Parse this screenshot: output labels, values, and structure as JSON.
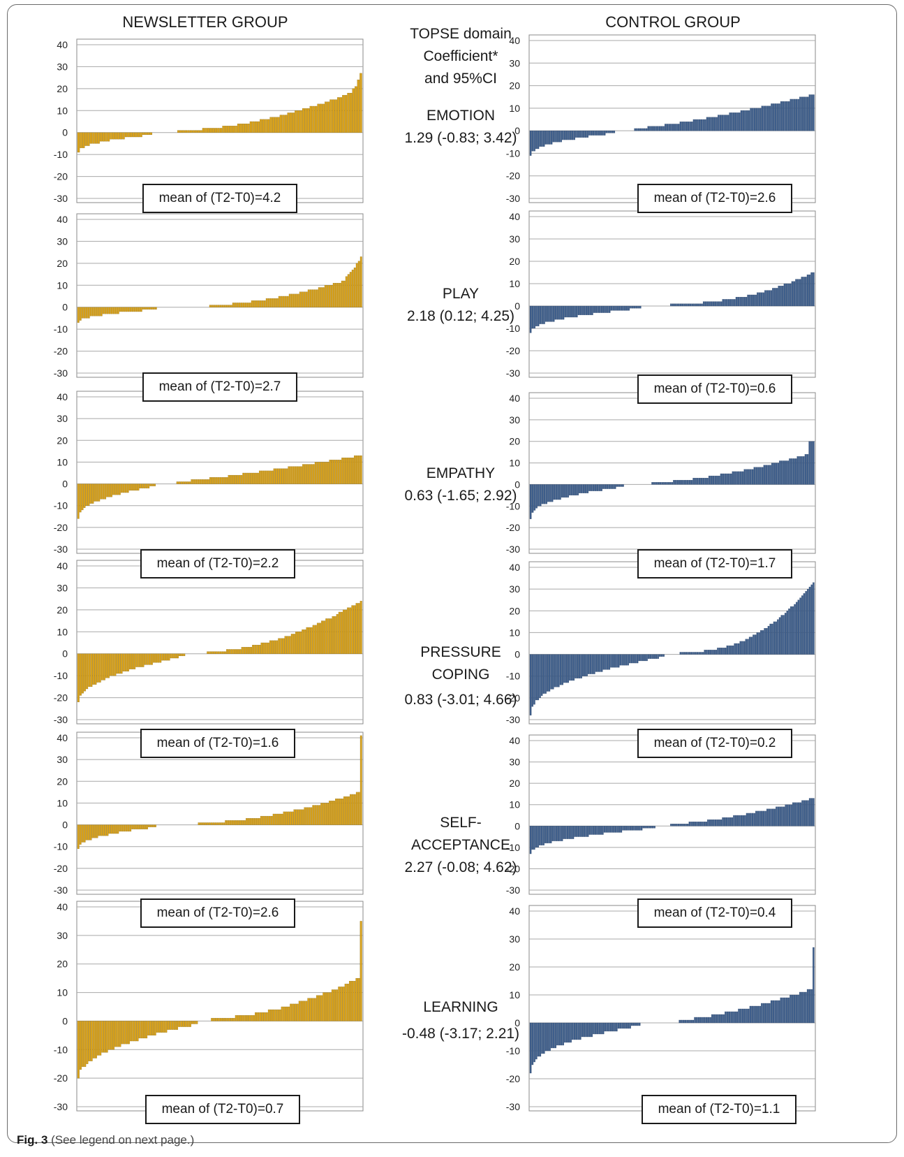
{
  "header": {
    "left": "NEWSLETTER GROUP",
    "right": "CONTROL GROUP",
    "middle": [
      "TOPSE domain",
      "Coefficient*",
      "and 95%CI"
    ]
  },
  "colors": {
    "newsletter": "#d9a21b",
    "control": "#3f5f8c"
  },
  "caption": {
    "label": "Fig. 3",
    "text": "(See legend on next page.)"
  },
  "rows": [
    {
      "domain_lines": [
        "EMOTION"
      ],
      "coef": "1.29 (-0.83; 3.42)",
      "newsletter_mean": "mean of (T2-T0)=4.2",
      "control_mean": "mean of (T2-T0)=2.6"
    },
    {
      "domain_lines": [
        "PLAY"
      ],
      "coef": "2.18 (0.12; 4.25)",
      "newsletter_mean": "mean of (T2-T0)=2.7",
      "control_mean": "mean of (T2-T0)=0.6"
    },
    {
      "domain_lines": [
        "EMPATHY"
      ],
      "coef": "0.63 (-1.65; 2.92)",
      "newsletter_mean": "mean of (T2-T0)=2.2",
      "control_mean": "mean of (T2-T0)=1.7"
    },
    {
      "domain_lines": [
        "PRESSURE",
        "COPING"
      ],
      "coef": "0.83 (-3.01; 4.66)",
      "newsletter_mean": "mean of (T2-T0)=1.6",
      "control_mean": "mean of (T2-T0)=0.2"
    },
    {
      "domain_lines": [
        "SELF-",
        "ACCEPTANCE"
      ],
      "coef": "2.27 (-0.08; 4.62)",
      "newsletter_mean": "mean of (T2-T0)=2.6",
      "control_mean": "mean of (T2-T0)=0.4"
    },
    {
      "domain_lines": [
        "LEARNING"
      ],
      "coef": "-0.48 (-3.17; 2.21)",
      "newsletter_mean": "mean of (T2-T0)=0.7",
      "control_mean": "mean of (T2-T0)=1.1"
    }
  ],
  "chart_data": [
    {
      "type": "bar",
      "group": "newsletter",
      "domain": "EMOTION",
      "ylim": [
        -30,
        40
      ],
      "yticks": [
        40,
        30,
        20,
        10,
        0,
        -10,
        -20,
        -30
      ],
      "segments": [
        {
          "n": 30,
          "from": -9,
          "to": -1,
          "pow": 0.45
        },
        {
          "n": 10,
          "zero": true
        },
        {
          "n": 70,
          "from": 1,
          "to": 18,
          "pow": 1.8
        },
        {
          "n": 4,
          "from": 20,
          "to": 27,
          "pow": 1.5
        }
      ]
    },
    {
      "type": "bar",
      "group": "control",
      "domain": "EMOTION",
      "ylim": [
        -30,
        40
      ],
      "yticks": [
        40,
        30,
        20,
        10,
        0,
        -10,
        -20,
        -30
      ],
      "segments": [
        {
          "n": 45,
          "from": -11,
          "to": -1,
          "pow": 0.45
        },
        {
          "n": 10,
          "zero": true
        },
        {
          "n": 95,
          "from": 1,
          "to": 16,
          "pow": 1.3
        }
      ]
    },
    {
      "type": "bar",
      "group": "newsletter",
      "domain": "PLAY",
      "ylim": [
        -30,
        40
      ],
      "yticks": [
        40,
        30,
        20,
        10,
        0,
        -10,
        -20,
        -30
      ],
      "segments": [
        {
          "n": 38,
          "from": -7,
          "to": -1,
          "pow": 0.45
        },
        {
          "n": 25,
          "zero": true
        },
        {
          "n": 65,
          "from": 1,
          "to": 12,
          "pow": 1.7
        },
        {
          "n": 8,
          "from": 14,
          "to": 23,
          "pow": 1.3
        }
      ]
    },
    {
      "type": "bar",
      "group": "control",
      "domain": "PLAY",
      "ylim": [
        -30,
        40
      ],
      "yticks": [
        40,
        30,
        20,
        10,
        0,
        -10,
        -20,
        -30
      ],
      "segments": [
        {
          "n": 58,
          "from": -12,
          "to": -1,
          "pow": 0.45
        },
        {
          "n": 15,
          "zero": true
        },
        {
          "n": 75,
          "from": 1,
          "to": 15,
          "pow": 2.2
        }
      ]
    },
    {
      "type": "bar",
      "group": "newsletter",
      "domain": "EMPATHY",
      "ylim": [
        -30,
        40
      ],
      "yticks": [
        40,
        30,
        20,
        10,
        0,
        -10,
        -20,
        -30
      ],
      "segments": [
        {
          "n": 38,
          "from": -16,
          "to": -1,
          "pow": 0.45
        },
        {
          "n": 10,
          "zero": true
        },
        {
          "n": 90,
          "from": 1,
          "to": 13,
          "pow": 1.2
        }
      ]
    },
    {
      "type": "bar",
      "group": "control",
      "domain": "EMPATHY",
      "ylim": [
        -30,
        40
      ],
      "yticks": [
        40,
        30,
        20,
        10,
        0,
        -10,
        -20,
        -30
      ],
      "segments": [
        {
          "n": 48,
          "from": -16,
          "to": -1,
          "pow": 0.4
        },
        {
          "n": 14,
          "zero": true
        },
        {
          "n": 80,
          "from": 1,
          "to": 14,
          "pow": 1.6
        },
        {
          "n": 3,
          "from": 20,
          "to": 20,
          "pow": 1
        }
      ]
    },
    {
      "type": "bar",
      "group": "newsletter",
      "domain": "PRESSURE COPING",
      "ylim": [
        -30,
        40
      ],
      "yticks": [
        40,
        30,
        20,
        10,
        0,
        -10,
        -20,
        -30
      ],
      "segments": [
        {
          "n": 50,
          "from": -22,
          "to": -1,
          "pow": 0.5
        },
        {
          "n": 10,
          "zero": true
        },
        {
          "n": 72,
          "from": 1,
          "to": 24,
          "pow": 1.8
        }
      ]
    },
    {
      "type": "bar",
      "group": "control",
      "domain": "PRESSURE COPING",
      "ylim": [
        -30,
        40
      ],
      "yticks": [
        40,
        30,
        20,
        10,
        0,
        -10,
        -20,
        -30
      ],
      "segments": [
        {
          "n": 72,
          "from": -28,
          "to": -1,
          "pow": 0.45
        },
        {
          "n": 8,
          "zero": true
        },
        {
          "n": 72,
          "from": 1,
          "to": 33,
          "pow": 2.4
        }
      ]
    },
    {
      "type": "bar",
      "group": "newsletter",
      "domain": "SELF-ACCEPTANCE",
      "ylim": [
        -30,
        40
      ],
      "yticks": [
        40,
        30,
        20,
        10,
        0,
        -10,
        -20,
        -30
      ],
      "segments": [
        {
          "n": 38,
          "from": -11,
          "to": -1,
          "pow": 0.45
        },
        {
          "n": 20,
          "zero": true
        },
        {
          "n": 78,
          "from": 1,
          "to": 15,
          "pow": 1.8
        },
        {
          "n": 1,
          "from": 41,
          "to": 41,
          "pow": 1
        }
      ]
    },
    {
      "type": "bar",
      "group": "control",
      "domain": "SELF-ACCEPTANCE",
      "ylim": [
        -30,
        40
      ],
      "yticks": [
        40,
        30,
        20,
        10,
        0,
        -10,
        -20,
        -30
      ],
      "segments": [
        {
          "n": 68,
          "from": -13,
          "to": -1,
          "pow": 0.45
        },
        {
          "n": 8,
          "zero": true
        },
        {
          "n": 78,
          "from": 1,
          "to": 13,
          "pow": 1.5
        }
      ]
    },
    {
      "type": "bar",
      "group": "newsletter",
      "domain": "LEARNING",
      "ylim": [
        -30,
        40
      ],
      "yticks": [
        40,
        30,
        20,
        10,
        0,
        -10,
        -20,
        -30
      ],
      "segments": [
        {
          "n": 55,
          "from": -20,
          "to": -1,
          "pow": 0.5
        },
        {
          "n": 6,
          "zero": true
        },
        {
          "n": 68,
          "from": 1,
          "to": 15,
          "pow": 1.8
        },
        {
          "n": 1,
          "from": 35,
          "to": 35,
          "pow": 1
        }
      ]
    },
    {
      "type": "bar",
      "group": "control",
      "domain": "LEARNING",
      "ylim": [
        -30,
        40
      ],
      "yticks": [
        40,
        30,
        20,
        10,
        0,
        -10,
        -20,
        -30
      ],
      "segments": [
        {
          "n": 58,
          "from": -18,
          "to": -1,
          "pow": 0.4
        },
        {
          "n": 20,
          "zero": true
        },
        {
          "n": 70,
          "from": 1,
          "to": 12,
          "pow": 1.4
        },
        {
          "n": 1,
          "from": 27,
          "to": 27,
          "pow": 1
        }
      ]
    }
  ]
}
